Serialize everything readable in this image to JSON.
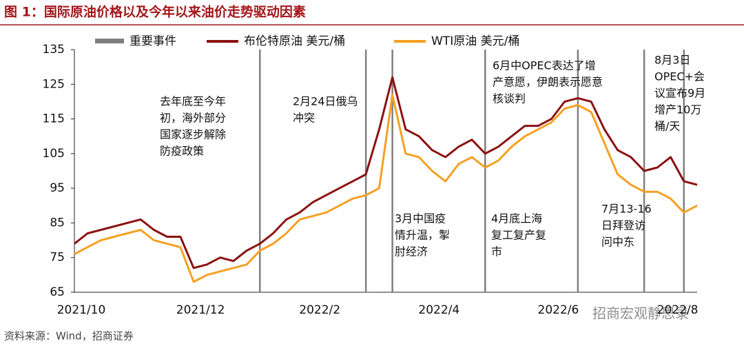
{
  "chart_data": {
    "type": "line",
    "title": "图 1：国际原油价格以及今年以来油价走势驱动因素",
    "source": "资料来源：Wind，招商证券",
    "watermark": "招商宏观静思录",
    "categories": [
      "2021/10",
      null,
      null,
      null,
      null,
      null,
      null,
      null,
      null,
      "2021/12",
      null,
      null,
      null,
      null,
      null,
      null,
      null,
      null,
      "2022/2",
      null,
      null,
      null,
      null,
      null,
      null,
      null,
      null,
      "2022/4",
      null,
      null,
      null,
      null,
      null,
      null,
      null,
      null,
      "2022/6",
      null,
      null,
      null,
      null,
      null,
      null,
      null,
      null,
      "2022/8",
      null,
      null
    ],
    "series": [
      {
        "name": "布伦特原油 美元/桶",
        "color": "#8b1010",
        "values": [
          79,
          82,
          83,
          84,
          85,
          86,
          83,
          81,
          81,
          72,
          73,
          75,
          74,
          77,
          79,
          82,
          86,
          88,
          91,
          93,
          95,
          97,
          99,
          112,
          127,
          112,
          110,
          106,
          104,
          107,
          109,
          105,
          107,
          110,
          113,
          113,
          115,
          120,
          121,
          120,
          112,
          106,
          104,
          100,
          101,
          104,
          97,
          96
        ]
      },
      {
        "name": "WTI原油 美元/桶",
        "color": "#f5a021",
        "values": [
          76,
          78,
          80,
          81,
          82,
          83,
          80,
          79,
          78,
          68,
          70,
          71,
          72,
          73,
          77,
          79,
          82,
          86,
          87,
          88,
          90,
          92,
          93,
          95,
          122,
          105,
          104,
          100,
          97,
          102,
          104,
          101,
          103,
          107,
          110,
          112,
          114,
          118,
          119,
          117,
          108,
          99,
          96,
          94,
          94,
          92,
          88,
          90
        ]
      }
    ],
    "events": {
      "name": "重要事件",
      "color": "#7f7f7f",
      "x": [
        14,
        22,
        24,
        31,
        38,
        43,
        46
      ]
    },
    "annotations": [
      [
        "去年底至今年",
        "初，海外部分",
        "国家逐步解除",
        "防疫政策"
      ],
      [
        "2月24日俄乌",
        "冲突"
      ],
      [
        "3月中国疫",
        "情升温，掣",
        "肘经济"
      ],
      [
        "6月中OPEC表达了增",
        "产意愿，伊朗表示愿意",
        "核谈判"
      ],
      [
        "4月底上海",
        "复工复产复",
        "市"
      ],
      [
        "7月13-16",
        "日拜登访",
        "问中东"
      ],
      [
        "8月3日",
        "OPEC+会",
        "议宣布9月",
        "增产10万",
        "桶/天"
      ]
    ],
    "ylim": [
      65,
      135
    ],
    "yticks": [
      65,
      75,
      85,
      95,
      105,
      115,
      125,
      135
    ],
    "grid": false
  }
}
